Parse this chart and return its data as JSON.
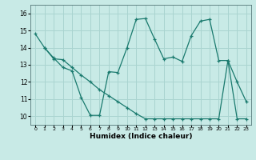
{
  "title": "",
  "xlabel": "Humidex (Indice chaleur)",
  "bg_color": "#c8eae6",
  "grid_color": "#aad4d0",
  "line_color": "#1a7a6e",
  "xlim": [
    -0.5,
    23.5
  ],
  "ylim": [
    9.5,
    16.5
  ],
  "yticks": [
    10,
    11,
    12,
    13,
    14,
    15,
    16
  ],
  "xticks": [
    0,
    1,
    2,
    3,
    4,
    5,
    6,
    7,
    8,
    9,
    10,
    11,
    12,
    13,
    14,
    15,
    16,
    17,
    18,
    19,
    20,
    21,
    22,
    23
  ],
  "line1_x": [
    0,
    1,
    2,
    3,
    4,
    5,
    6,
    7,
    8,
    9,
    10,
    11,
    12,
    13,
    14,
    15,
    16,
    17,
    18,
    19,
    20,
    21,
    22,
    23
  ],
  "line1_y": [
    14.8,
    14.0,
    13.4,
    12.85,
    12.65,
    11.1,
    10.05,
    10.05,
    12.6,
    12.55,
    14.0,
    15.65,
    15.7,
    14.5,
    13.35,
    13.45,
    13.2,
    14.7,
    15.55,
    15.65,
    13.25,
    13.25,
    12.0,
    10.85
  ],
  "line2_x": [
    1,
    2,
    3,
    4,
    5,
    6,
    7,
    8,
    9,
    10,
    11,
    12,
    13,
    14,
    15,
    16,
    17,
    18,
    19,
    20,
    21,
    22,
    23
  ],
  "line2_y": [
    14.0,
    13.35,
    13.3,
    12.85,
    12.4,
    12.0,
    11.55,
    11.2,
    10.85,
    10.5,
    10.15,
    9.85,
    9.85,
    9.85,
    9.85,
    9.85,
    9.85,
    9.85,
    9.85,
    9.85,
    13.25,
    9.85,
    9.85
  ]
}
